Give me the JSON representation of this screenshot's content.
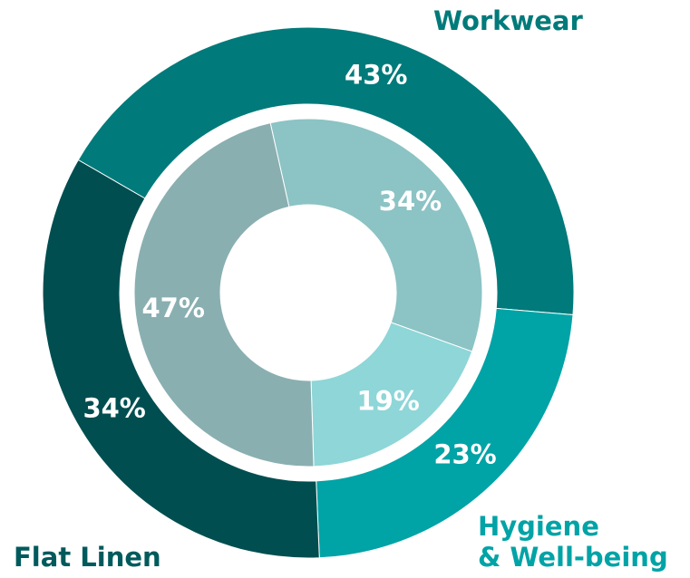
{
  "chart_data": {
    "type": "donut",
    "categories": [
      "Workwear",
      "Hygiene\n& Well-being",
      "Flat Linen"
    ],
    "series": [
      {
        "values": [
          43,
          23,
          34
        ],
        "value_labels": [
          "43%",
          "23%",
          "34%"
        ],
        "colors": [
          "#007a7a",
          "#00a3a6",
          "#004e50"
        ]
      },
      {
        "values": [
          34,
          19,
          47
        ],
        "value_labels": [
          "34%",
          "19%",
          "47%"
        ],
        "colors": [
          "#8cc3c4",
          "#8ed6d8",
          "#8aafb0"
        ]
      }
    ]
  }
}
